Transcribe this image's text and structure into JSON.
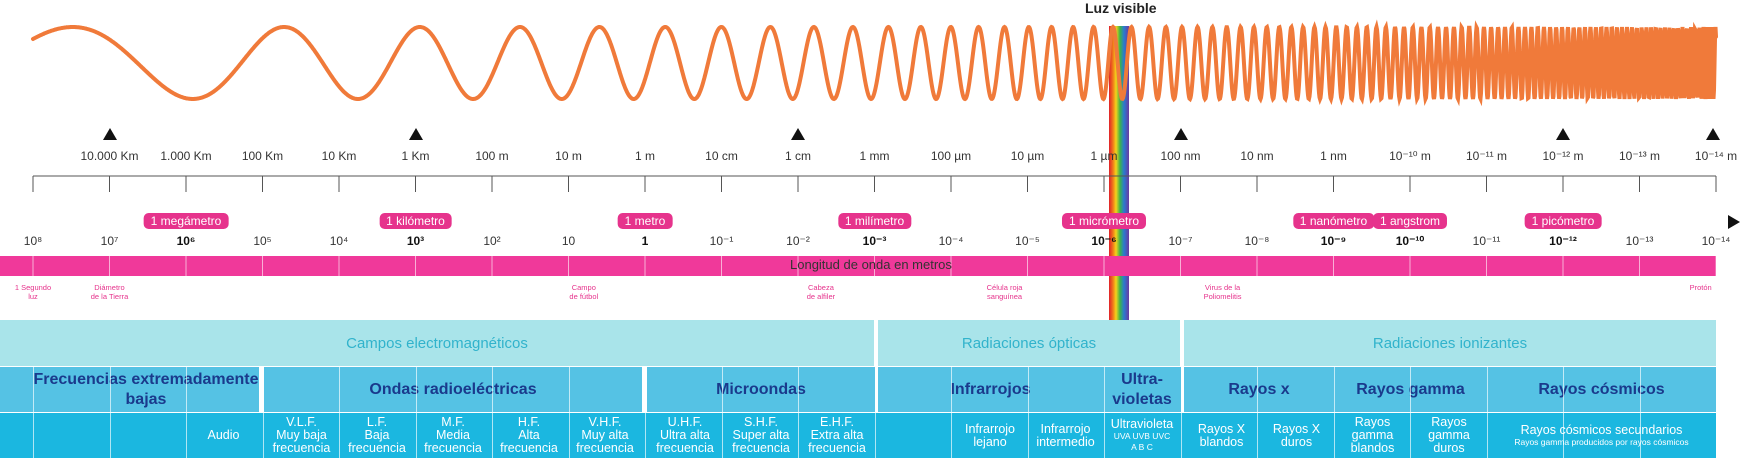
{
  "visible_light_label": "Luz visible",
  "wavelength_ticks": [
    "10.000 Km",
    "1.000 Km",
    "100 Km",
    "10 Km",
    "1 Km",
    "100 m",
    "10 m",
    "1 m",
    "10 cm",
    "1 cm",
    "1 mm",
    "100 µm",
    "10 µm",
    "1 µm",
    "100 nm",
    "10 nm",
    "1 nm",
    "10⁻¹⁰ m",
    "10⁻¹¹ m",
    "10⁻¹² m",
    "10⁻¹³ m",
    "10⁻¹⁴ m"
  ],
  "exponent_labels": [
    "10⁸",
    "10⁷",
    "10⁶",
    "10⁵",
    "10⁴",
    "10³",
    "10²",
    "10",
    "1",
    "10⁻¹",
    "10⁻²",
    "10⁻³",
    "10⁻⁴",
    "10⁻⁵",
    "10⁻⁶",
    "10⁻⁷",
    "10⁻⁸",
    "10⁻⁹",
    "10⁻¹⁰",
    "10⁻¹¹",
    "10⁻¹²",
    "10⁻¹³",
    "10⁻¹⁴"
  ],
  "unit_pills": [
    "1 megámetro",
    "1 kilómetro",
    "1 metro",
    "1 milímetro",
    "1 micrómetro",
    "1 nanómetro",
    "1 angstrom",
    "1 picómetro"
  ],
  "axis_title": "Longitud de onda en metros",
  "scale_examples": [
    "1 Segundo\nluz",
    "Diámetro\nde la Tierra",
    "Campo\nde fútbol",
    "Cabeza\nde alfiler",
    "Célula roja\nsanguínea",
    "Virus de la\nPoliomelitis",
    "Protón"
  ],
  "categories": [
    "Campos electromagnéticos",
    "Radiaciones ópticas",
    "Radiaciones ionizantes"
  ],
  "bands": [
    "Frecuencias extremadamente bajas",
    "Ondas radioeléctricas",
    "Microondas",
    "Infrarrojos",
    "Ultra-\nvioletas",
    "Rayos x",
    "Rayos gamma",
    "Rayos cósmicos"
  ],
  "sub_bands": [
    "Audio",
    "V.L.F.\nMuy baja\nfrecuencia",
    "L.F.\nBaja\nfrecuencia",
    "M.F.\nMedia\nfrecuencia",
    "H.F.\nAlta\nfrecuencia",
    "V.H.F.\nMuy alta\nfrecuencia",
    "U.H.F.\nUltra alta\nfrecuencia",
    "S.H.F.\nSuper alta\nfrecuencia",
    "E.H.F.\nExtra alta\nfrecuencia",
    "Infrarrojo\nlejano",
    "Infrarrojo\nintermedio",
    "Ultravioleta",
    "UVA UVB UVC\nA B C",
    "Rayos X\nblandos",
    "Rayos X\nduros",
    "Rayos\ngamma\nblandos",
    "Rayos\ngamma\nduros",
    "Rayos cósmicos secundarios",
    "Rayos gamma producidos por rayos cósmicos"
  ],
  "colors": {
    "wave": "#f07a3a",
    "pink": "#f0399a",
    "row1": "#a9e4ea",
    "row2": "#55c2e4",
    "row3": "#1bb7e0",
    "band_text": "#1a3a8c"
  }
}
